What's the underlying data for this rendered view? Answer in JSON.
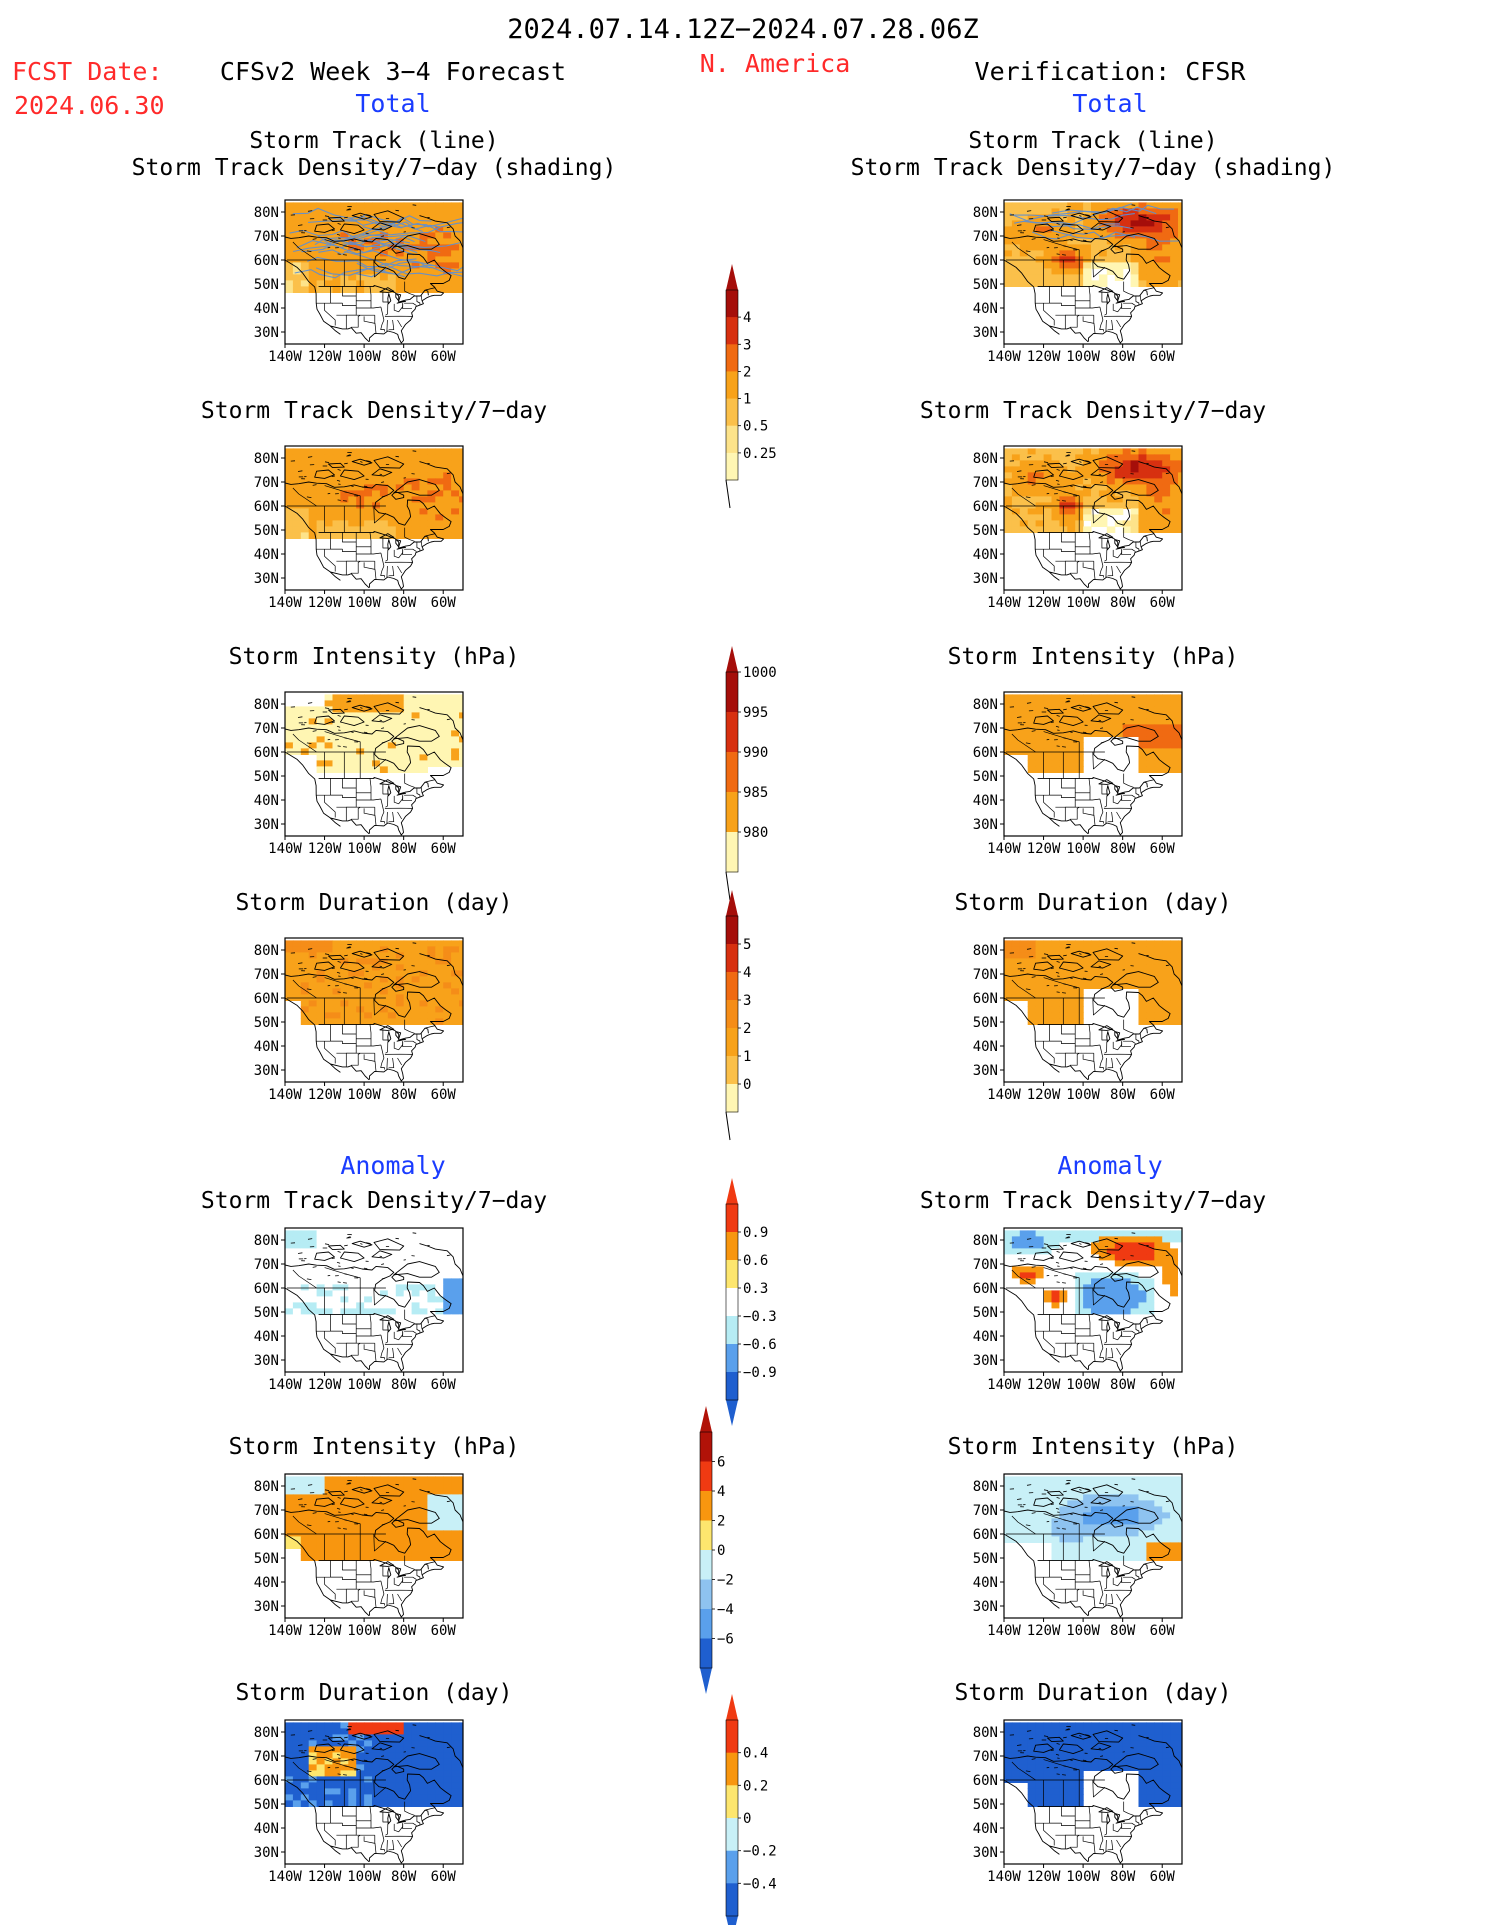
{
  "header": {
    "period": "2024.07.14.12Z−2024.07.28.06Z",
    "region": "N. America",
    "fcst_label": "FCST Date:",
    "fcst_date": "2024.06.30",
    "left_title": "CFSv2 Week 3−4 Forecast",
    "right_title": "Verification: CFSR",
    "total_label": "Total",
    "anomaly_label": "Anomaly"
  },
  "colors": {
    "red_text": "#ff2a2a",
    "blue_text": "#1a3cff",
    "track_line": "#5b8fd6",
    "land_line": "#000000"
  },
  "chart_data": [
    {
      "type": "heatmap",
      "panel": "forecast",
      "section": "Total",
      "title": [
        "Storm Track (line)",
        "Storm Track Density/7−day (shading)"
      ],
      "variable": "density",
      "overlay": "storm-track-lines",
      "pattern": "forecast-density",
      "x_ticks": [
        "140W",
        "120W",
        "100W",
        "80W",
        "60W"
      ],
      "y_ticks": [
        "80N",
        "70N",
        "60N",
        "50N",
        "40N",
        "30N"
      ],
      "lon_range": [
        -140,
        -50
      ],
      "lat_range": [
        25,
        85
      ]
    },
    {
      "type": "heatmap",
      "panel": "verification",
      "section": "Total",
      "title": [
        "Storm Track (line)",
        "Storm Track Density/7−day (shading)"
      ],
      "variable": "density",
      "overlay": "storm-track-lines",
      "pattern": "verify-density",
      "x_ticks": [
        "140W",
        "120W",
        "100W",
        "80W",
        "60W"
      ],
      "y_ticks": [
        "80N",
        "70N",
        "60N",
        "50N",
        "40N",
        "30N"
      ],
      "lon_range": [
        -140,
        -50
      ],
      "lat_range": [
        25,
        85
      ]
    },
    {
      "type": "heatmap",
      "panel": "forecast",
      "section": "Total",
      "title": [
        "Storm Track Density/7−day"
      ],
      "variable": "density",
      "pattern": "forecast-density",
      "x_ticks": [
        "140W",
        "120W",
        "100W",
        "80W",
        "60W"
      ],
      "y_ticks": [
        "80N",
        "70N",
        "60N",
        "50N",
        "40N",
        "30N"
      ],
      "lon_range": [
        -140,
        -50
      ],
      "lat_range": [
        25,
        85
      ]
    },
    {
      "type": "heatmap",
      "panel": "verification",
      "section": "Total",
      "title": [
        "Storm Track Density/7−day"
      ],
      "variable": "density",
      "pattern": "verify-density",
      "x_ticks": [
        "140W",
        "120W",
        "100W",
        "80W",
        "60W"
      ],
      "y_ticks": [
        "80N",
        "70N",
        "60N",
        "50N",
        "40N",
        "30N"
      ],
      "lon_range": [
        -140,
        -50
      ],
      "lat_range": [
        25,
        85
      ]
    },
    {
      "type": "heatmap",
      "panel": "forecast",
      "section": "Total",
      "title": [
        "Storm Intensity (hPa)"
      ],
      "variable": "intensity",
      "pattern": "forecast-intensity",
      "x_ticks": [
        "140W",
        "120W",
        "100W",
        "80W",
        "60W"
      ],
      "y_ticks": [
        "80N",
        "70N",
        "60N",
        "50N",
        "40N",
        "30N"
      ],
      "lon_range": [
        -140,
        -50
      ],
      "lat_range": [
        25,
        85
      ]
    },
    {
      "type": "heatmap",
      "panel": "verification",
      "section": "Total",
      "title": [
        "Storm Intensity (hPa)"
      ],
      "variable": "intensity",
      "pattern": "verify-intensity",
      "x_ticks": [
        "140W",
        "120W",
        "100W",
        "80W",
        "60W"
      ],
      "y_ticks": [
        "80N",
        "70N",
        "60N",
        "50N",
        "40N",
        "30N"
      ],
      "lon_range": [
        -140,
        -50
      ],
      "lat_range": [
        25,
        85
      ]
    },
    {
      "type": "heatmap",
      "panel": "forecast",
      "section": "Total",
      "title": [
        "Storm Duration (day)"
      ],
      "variable": "duration",
      "pattern": "forecast-duration",
      "x_ticks": [
        "140W",
        "120W",
        "100W",
        "80W",
        "60W"
      ],
      "y_ticks": [
        "80N",
        "70N",
        "60N",
        "50N",
        "40N",
        "30N"
      ],
      "lon_range": [
        -140,
        -50
      ],
      "lat_range": [
        25,
        85
      ]
    },
    {
      "type": "heatmap",
      "panel": "verification",
      "section": "Total",
      "title": [
        "Storm Duration (day)"
      ],
      "variable": "duration",
      "pattern": "verify-duration",
      "x_ticks": [
        "140W",
        "120W",
        "100W",
        "80W",
        "60W"
      ],
      "y_ticks": [
        "80N",
        "70N",
        "60N",
        "50N",
        "40N",
        "30N"
      ],
      "lon_range": [
        -140,
        -50
      ],
      "lat_range": [
        25,
        85
      ]
    },
    {
      "type": "heatmap",
      "panel": "forecast",
      "section": "Anomaly",
      "title": [
        "Storm Track Density/7−day"
      ],
      "variable": "density-anomaly",
      "pattern": "forecast-density-anom",
      "x_ticks": [
        "140W",
        "120W",
        "100W",
        "80W",
        "60W"
      ],
      "y_ticks": [
        "80N",
        "70N",
        "60N",
        "50N",
        "40N",
        "30N"
      ],
      "lon_range": [
        -140,
        -50
      ],
      "lat_range": [
        25,
        85
      ]
    },
    {
      "type": "heatmap",
      "panel": "verification",
      "section": "Anomaly",
      "title": [
        "Storm Track Density/7−day"
      ],
      "variable": "density-anomaly",
      "pattern": "verify-density-anom",
      "x_ticks": [
        "140W",
        "120W",
        "100W",
        "80W",
        "60W"
      ],
      "y_ticks": [
        "80N",
        "70N",
        "60N",
        "50N",
        "40N",
        "30N"
      ],
      "lon_range": [
        -140,
        -50
      ],
      "lat_range": [
        25,
        85
      ]
    },
    {
      "type": "heatmap",
      "panel": "forecast",
      "section": "Anomaly",
      "title": [
        "Storm Intensity (hPa)"
      ],
      "variable": "intensity-anomaly",
      "pattern": "forecast-intensity-anom",
      "x_ticks": [
        "140W",
        "120W",
        "100W",
        "80W",
        "60W"
      ],
      "y_ticks": [
        "80N",
        "70N",
        "60N",
        "50N",
        "40N",
        "30N"
      ],
      "lon_range": [
        -140,
        -50
      ],
      "lat_range": [
        25,
        85
      ]
    },
    {
      "type": "heatmap",
      "panel": "verification",
      "section": "Anomaly",
      "title": [
        "Storm Intensity (hPa)"
      ],
      "variable": "intensity-anomaly",
      "pattern": "verify-intensity-anom",
      "x_ticks": [
        "140W",
        "120W",
        "100W",
        "80W",
        "60W"
      ],
      "y_ticks": [
        "80N",
        "70N",
        "60N",
        "50N",
        "40N",
        "30N"
      ],
      "lon_range": [
        -140,
        -50
      ],
      "lat_range": [
        25,
        85
      ]
    },
    {
      "type": "heatmap",
      "panel": "forecast",
      "section": "Anomaly",
      "title": [
        "Storm Duration (day)"
      ],
      "variable": "duration-anomaly",
      "pattern": "forecast-duration-anom",
      "x_ticks": [
        "140W",
        "120W",
        "100W",
        "80W",
        "60W"
      ],
      "y_ticks": [
        "80N",
        "70N",
        "60N",
        "50N",
        "40N",
        "30N"
      ],
      "lon_range": [
        -140,
        -50
      ],
      "lat_range": [
        25,
        85
      ]
    },
    {
      "type": "heatmap",
      "panel": "verification",
      "section": "Anomaly",
      "title": [
        "Storm Duration (day)"
      ],
      "variable": "duration-anomaly",
      "pattern": "verify-duration-anom",
      "x_ticks": [
        "140W",
        "120W",
        "100W",
        "80W",
        "60W"
      ],
      "y_ticks": [
        "80N",
        "70N",
        "60N",
        "50N",
        "40N",
        "30N"
      ],
      "lon_range": [
        -140,
        -50
      ],
      "lat_range": [
        25,
        85
      ]
    }
  ],
  "colorbars": [
    {
      "variable": "density",
      "levels": [
        "0.25",
        "0.5",
        "1",
        "2",
        "3",
        "4"
      ],
      "colors": [
        "#fff6b3",
        "#fde38a",
        "#fbc04a",
        "#f8a21a",
        "#f06a12",
        "#d73010",
        "#a50e0a"
      ],
      "ends": [
        "low-hook",
        "high-arrow"
      ]
    },
    {
      "variable": "intensity",
      "levels": [
        "1000",
        "995",
        "990",
        "985",
        "980"
      ],
      "colors": [
        "#fff6b3",
        "#f8a21a",
        "#f06a12",
        "#d73010",
        "#a50e0a"
      ],
      "ends": [
        "low-hook",
        "high-arrow"
      ]
    },
    {
      "variable": "duration",
      "levels": [
        "0",
        "1",
        "2",
        "3",
        "4",
        "5"
      ],
      "colors": [
        "#fff6b3",
        "#fbc04a",
        "#f8a21a",
        "#f58d18",
        "#f06a12",
        "#d73010",
        "#a50e0a"
      ],
      "ends": [
        "low-hook",
        "high-arrow"
      ]
    },
    {
      "variable": "density-anomaly",
      "levels": [
        "0.9",
        "0.6",
        "0.3",
        "−0.3",
        "−0.6",
        "−0.9"
      ],
      "colors": [
        "#f03a12",
        "#f8960f",
        "#fde66e",
        "#ffffff",
        "#b6ecf4",
        "#5aa0ec",
        "#1f5fcf"
      ],
      "ends": [
        "high-arrow",
        "low-arrow"
      ]
    },
    {
      "variable": "intensity-anomaly",
      "levels": [
        "6",
        "4",
        "2",
        "0",
        "−2",
        "−4",
        "−6"
      ],
      "colors": [
        "#b11208",
        "#f03a12",
        "#f8960f",
        "#fde66e",
        "#c8f0f7",
        "#8ec3f0",
        "#5aa0ec",
        "#1f5fcf"
      ],
      "ends": [
        "high-arrow",
        "low-arrow"
      ]
    },
    {
      "variable": "duration-anomaly",
      "levels": [
        "0.4",
        "0.2",
        "0",
        "−0.2",
        "−0.4"
      ],
      "colors": [
        "#f03a12",
        "#f8960f",
        "#fde66e",
        "#c8f0f7",
        "#5aa0ec",
        "#1f5fcf"
      ],
      "ends": [
        "high-arrow",
        "low-arrow"
      ]
    }
  ]
}
